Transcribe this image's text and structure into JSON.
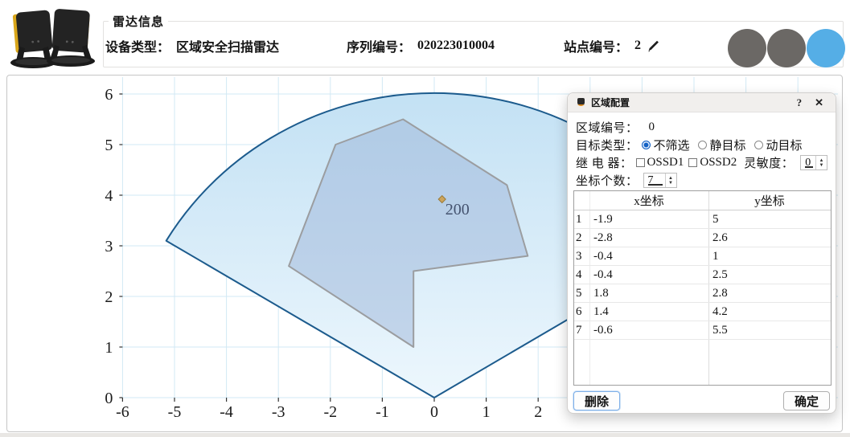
{
  "header": {
    "group_title": "雷达信息",
    "device_type_label": "设备类型：",
    "device_type_value": "区域安全扫描雷达",
    "serial_label": "序列编号：",
    "serial_value": "020223010004",
    "station_label": "站点编号：",
    "station_value": "2",
    "status_circles": [
      {
        "name": "status-circle-1",
        "color": "#6b6865"
      },
      {
        "name": "status-circle-2",
        "color": "#6b6865"
      },
      {
        "name": "status-circle-3",
        "color": "#55aee6"
      }
    ]
  },
  "chart_data": {
    "type": "area",
    "title": "",
    "xlabel": "",
    "ylabel": "",
    "xlim": [
      -6,
      7.3
    ],
    "ylim": [
      -0.7,
      6.4
    ],
    "grid": true,
    "x_grid_positions": [
      -6,
      -5,
      -4,
      -3,
      -2,
      -1,
      0,
      1,
      2,
      3,
      4,
      5,
      6,
      7
    ],
    "x_tick_labels": [
      "-6",
      "-5",
      "-4",
      "-3",
      "-2",
      "-1",
      "0",
      "1",
      "2"
    ],
    "y_grid_positions": [
      0,
      1,
      2,
      3,
      4,
      5,
      6
    ],
    "y_tick_labels": [
      "0",
      "1",
      "2",
      "3",
      "4",
      "5",
      "6"
    ],
    "grid_color": "#d2e9f4",
    "fan": {
      "center": [
        0,
        0
      ],
      "radius": 6.02,
      "start_angle_deg": 31,
      "end_angle_deg": 149,
      "fill_top": "#c3e1f4",
      "fill_bottom": "#edf7fd",
      "stroke": "#1c5b8d"
    },
    "zone_polygon": {
      "points": [
        [
          -1.9,
          5
        ],
        [
          -2.8,
          2.6
        ],
        [
          -0.4,
          1
        ],
        [
          -0.4,
          2.5
        ],
        [
          1.8,
          2.8
        ],
        [
          1.4,
          4.2
        ],
        [
          -0.6,
          5.5
        ]
      ],
      "fill": "rgba(151,175,213,0.45)",
      "stroke": "#9b9da0"
    },
    "marker": {
      "x": 0.15,
      "y": 3.92,
      "label": "200",
      "color": "#cda45c",
      "edge": "#9a7a38",
      "label_color": "#44536f"
    }
  },
  "dialog": {
    "title": "区域配置",
    "help_button": "?",
    "close_button": "✕",
    "zone_label": "区域编号：",
    "zone_value": "0",
    "target_type_label": "目标类型：",
    "target_type_options": [
      {
        "label": "不筛选",
        "selected": true
      },
      {
        "label": "静目标",
        "selected": false
      },
      {
        "label": "动目标",
        "selected": false
      }
    ],
    "relay_label": "继 电 器：",
    "relay_options": [
      {
        "label": "OSSD1",
        "checked": false
      },
      {
        "label": "OSSD2",
        "checked": false
      }
    ],
    "sensitivity_label": "灵敏度：",
    "sensitivity_value": "0",
    "coord_count_label": "坐标个数：",
    "coord_count_value": "7",
    "table": {
      "headers": [
        "x坐标",
        "y坐标"
      ],
      "rows": [
        {
          "num": "1",
          "x": "-1.9",
          "y": "5"
        },
        {
          "num": "2",
          "x": "-2.8",
          "y": "2.6"
        },
        {
          "num": "3",
          "x": "-0.4",
          "y": "1"
        },
        {
          "num": "4",
          "x": "-0.4",
          "y": "2.5"
        },
        {
          "num": "5",
          "x": "1.8",
          "y": "2.8"
        },
        {
          "num": "6",
          "x": "1.4",
          "y": "4.2"
        },
        {
          "num": "7",
          "x": "-0.6",
          "y": "5.5"
        }
      ]
    },
    "delete_button": "删除",
    "ok_button": "确定"
  }
}
